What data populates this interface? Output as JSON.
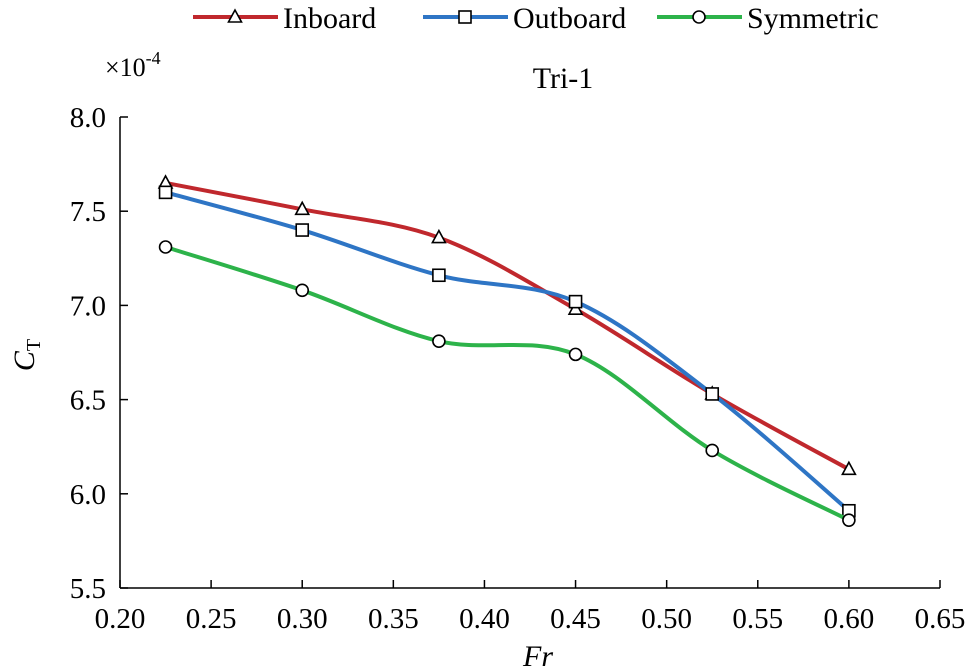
{
  "chart_data": {
    "type": "line",
    "title": "Tri-1",
    "xlabel": "Fr",
    "ylabel": "C",
    "ylabel_subscript": "T",
    "y_multiplier": {
      "base": "×10",
      "exponent": "-4"
    },
    "x": [
      0.225,
      0.3,
      0.375,
      0.45,
      0.525,
      0.6
    ],
    "xlim": [
      0.2,
      0.65
    ],
    "ylim": [
      5.5,
      8.0
    ],
    "xticks": [
      "0.20",
      "0.25",
      "0.30",
      "0.35",
      "0.40",
      "0.45",
      "0.50",
      "0.55",
      "0.60",
      "0.65"
    ],
    "yticks": [
      "5.5",
      "6.0",
      "6.5",
      "7.0",
      "7.5",
      "8.0"
    ],
    "grid": false,
    "legend_position": "top",
    "series": [
      {
        "name": "Inboard",
        "color": "#c0282d",
        "marker": "triangle",
        "values": [
          7.65,
          7.51,
          7.36,
          6.98,
          6.53,
          6.13
        ]
      },
      {
        "name": "Outboard",
        "color": "#2e75c5",
        "marker": "square",
        "values": [
          7.6,
          7.4,
          7.16,
          7.02,
          6.53,
          5.91
        ]
      },
      {
        "name": "Symmetric",
        "color": "#2db34a",
        "marker": "circle",
        "values": [
          7.31,
          7.08,
          6.81,
          6.74,
          6.23,
          5.86
        ]
      }
    ]
  }
}
